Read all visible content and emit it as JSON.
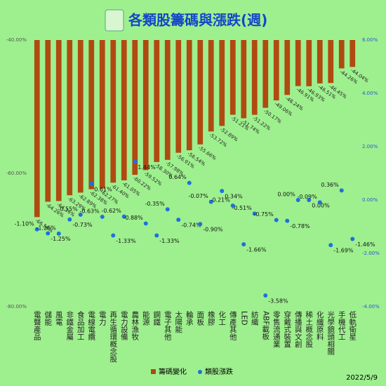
{
  "chart_data": {
    "type": "bar+scatter",
    "title": "各類股籌碼與漲跌(週)",
    "date": "2022/5/9",
    "categories": [
      "電聲產品",
      "儲能",
      "風電",
      "非鐵金屬",
      "食品加工",
      "電線電纜",
      "電力",
      "再生循環概念股",
      "電力設備",
      "農林漁牧",
      "能源",
      "鋼鐵",
      "電子其他",
      "太陽能",
      "輪承",
      "面板",
      "橡膠",
      "化工",
      "傳產其他",
      "LED",
      "紡織",
      "ABF載板",
      "零售流通業",
      "穿戴式裝置",
      "傳播與文創",
      "稀土概念股",
      "化纖原料",
      "光學鏡頭相關",
      "手機代工",
      "低軌衛星"
    ],
    "series": [
      {
        "name": "籌碼變化",
        "color": "#b04a10",
        "values": [
          -66.56,
          -64.26,
          -64.16,
          -63.29,
          -62.89,
          -62.38,
          -62.27,
          -61.4,
          -61.05,
          -60.22,
          -59.52,
          -58.3,
          -57.98,
          -56.91,
          -56.54,
          -55.66,
          -53.72,
          -52.89,
          -51.21,
          -51.74,
          -51.22,
          -50.17,
          -49.06,
          -48.24,
          -46.91,
          -46.93,
          -46.51,
          -46.45,
          -44.26,
          -44.04
        ],
        "value_labels": [
          "-66.56%",
          "-64.26%",
          "-64.16%",
          "-63.29%",
          "-62.89%",
          "-62.38%",
          "-62.27%",
          "-61.40%",
          "-61.05%",
          "-60.22%",
          "-59.52%",
          "-58.30%",
          "-57.98%",
          "-56.91%",
          "-56.54%",
          "-55.66%",
          "-53.72%",
          "-52.89%",
          "-51.21%",
          "-51.74%",
          "-51.22%",
          "-50.17%",
          "-49.06%",
          "-48.24%",
          "-46.91%",
          "-46.93%",
          "-46.51%",
          "-46.45%",
          "-44.26%",
          "-44.04%"
        ]
      },
      {
        "name": "類股漲跌",
        "color": "#1f6fe0",
        "axis": "y2",
        "values": [
          -1.1,
          -1.25,
          -1.26,
          -0.73,
          -0.55,
          0.61,
          -0.63,
          -1.33,
          -0.62,
          1.44,
          -0.88,
          -1.33,
          -0.35,
          -0.74,
          0.64,
          -0.9,
          -0.07,
          0.34,
          -0.21,
          -1.66,
          -0.51,
          -3.58,
          -0.75,
          -0.78,
          0.0,
          0.0,
          -0.09,
          -1.69,
          0.36,
          -1.46
        ],
        "value_labels": [
          "-1.10%",
          "-1.25%",
          "-1.26%",
          "-0.73%",
          "-0.55%",
          "0.61%",
          "-0.63%",
          "-1.33%",
          "-0.62%",
          "1.44%",
          "-0.88%",
          "-1.33%",
          "-0.35%",
          "-0.74%",
          "0.64%",
          "-0.90%",
          "-0.07%",
          "0.34%",
          "-0.21%",
          "-1.66%",
          "-0.51%",
          "-3.58%",
          "-0.75%",
          "-0.78%",
          "0.00%",
          "0.00%",
          "-0.09%",
          "-1.69%",
          "0.36%",
          "-1.46%"
        ]
      }
    ],
    "ylim": [
      -80,
      -40
    ],
    "yticks": [
      {
        "value": -40,
        "label": "-40.00%"
      },
      {
        "value": -60,
        "label": "-60.00%"
      },
      {
        "value": -80,
        "label": "-80.00%"
      }
    ],
    "y2lim": [
      -4,
      6
    ],
    "y2ticks": [
      {
        "value": 6,
        "label": "6.00%"
      },
      {
        "value": 4,
        "label": "4.00%"
      },
      {
        "value": 2,
        "label": "2.00%"
      },
      {
        "value": 0,
        "label": "0.00%"
      },
      {
        "value": -2,
        "label": "-2.00%"
      },
      {
        "value": -4,
        "label": "-4.00%"
      }
    ]
  }
}
